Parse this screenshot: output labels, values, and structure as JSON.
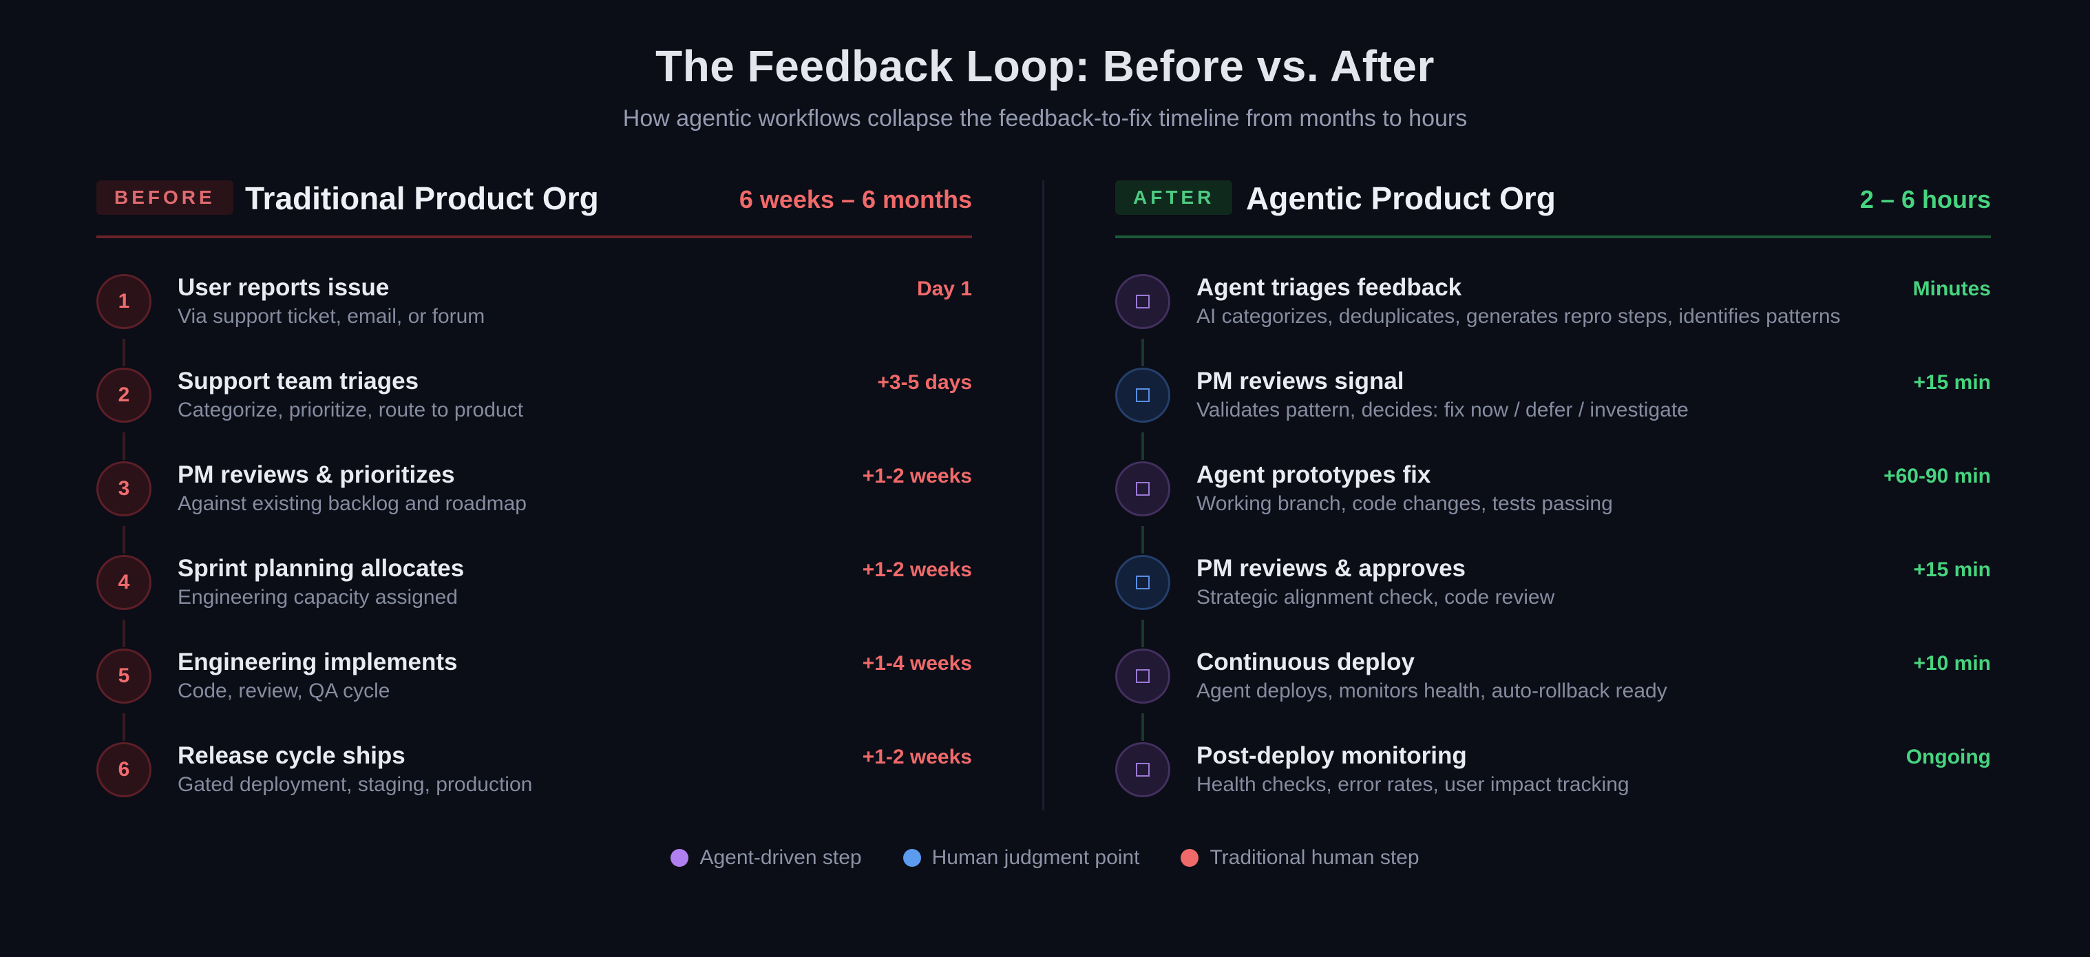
{
  "header": {
    "title": "The Feedback Loop: Before vs. After",
    "subtitle": "How agentic workflows collapse the feedback-to-fix timeline from months to hours"
  },
  "before": {
    "tag": "BEFORE",
    "title": "Traditional Product Org",
    "duration": "6 weeks – 6 months",
    "steps": [
      {
        "num": "1",
        "title": "User reports issue",
        "desc": "Via support ticket, email, or forum",
        "time": "Day 1",
        "kind": "traditional"
      },
      {
        "num": "2",
        "title": "Support team triages",
        "desc": "Categorize, prioritize, route to product",
        "time": "+3-5 days",
        "kind": "traditional"
      },
      {
        "num": "3",
        "title": "PM reviews & prioritizes",
        "desc": "Against existing backlog and roadmap",
        "time": "+1-2 weeks",
        "kind": "traditional"
      },
      {
        "num": "4",
        "title": "Sprint planning allocates",
        "desc": "Engineering capacity assigned",
        "time": "+1-2 weeks",
        "kind": "traditional"
      },
      {
        "num": "5",
        "title": "Engineering implements",
        "desc": "Code, review, QA cycle",
        "time": "+1-4 weeks",
        "kind": "traditional"
      },
      {
        "num": "6",
        "title": "Release cycle ships",
        "desc": "Gated deployment, staging, production",
        "time": "+1-2 weeks",
        "kind": "traditional"
      }
    ]
  },
  "after": {
    "tag": "AFTER",
    "title": "Agentic Product Org",
    "duration": "2 – 6 hours",
    "steps": [
      {
        "icon": "square-icon",
        "title": "Agent triages feedback",
        "desc": "AI categorizes, deduplicates, generates repro steps, identifies patterns",
        "time": "Minutes",
        "kind": "agent"
      },
      {
        "icon": "square-icon",
        "title": "PM reviews signal",
        "desc": "Validates pattern, decides: fix now / defer / investigate",
        "time": "+15 min",
        "kind": "human"
      },
      {
        "icon": "square-icon",
        "title": "Agent prototypes fix",
        "desc": "Working branch, code changes, tests passing",
        "time": "+60-90 min",
        "kind": "agent"
      },
      {
        "icon": "square-icon",
        "title": "PM reviews & approves",
        "desc": "Strategic alignment check, code review",
        "time": "+15 min",
        "kind": "human"
      },
      {
        "icon": "square-icon",
        "title": "Continuous deploy",
        "desc": "Agent deploys, monitors health, auto-rollback ready",
        "time": "+10 min",
        "kind": "agent"
      },
      {
        "icon": "square-icon",
        "title": "Post-deploy monitoring",
        "desc": "Health checks, error rates, user impact tracking",
        "time": "Ongoing",
        "kind": "agent"
      }
    ]
  },
  "legend": [
    {
      "label": "Agent-driven step",
      "color": "#b07ff0"
    },
    {
      "label": "Human judgment point",
      "color": "#5b9bf0"
    },
    {
      "label": "Traditional human step",
      "color": "#f06a6a"
    }
  ]
}
